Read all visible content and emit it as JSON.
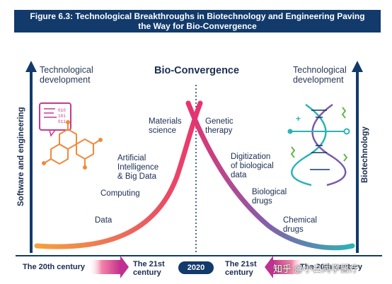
{
  "figure_title_line1": "Figure 6.3: Technological Breakthroughs in Biotechnology and Engineering Paving",
  "figure_title_line2": "the Way for Bio-Convergence",
  "center_title": "Bio-Convergence",
  "left_header": [
    "Technological",
    "development"
  ],
  "right_header": [
    "Technological",
    "development"
  ],
  "left_axis_label": "Software and engineering",
  "right_axis_label": "Biotechnology",
  "left_labels": {
    "data": "Data",
    "computing": "Computing",
    "ai": [
      "Artificial",
      "Intelligence",
      "& Big Data"
    ],
    "materials": [
      "Materials",
      "science"
    ]
  },
  "right_labels": {
    "genetic": [
      "Genetic",
      "therapy"
    ],
    "digitization": [
      "Digitization",
      "of biological",
      "data"
    ],
    "bio_drugs": [
      "Biological",
      "drugs"
    ],
    "chem_drugs": [
      "Chemical",
      "drugs"
    ]
  },
  "timeline": {
    "left_start": "The 20th century",
    "left_end": [
      "The 21st",
      "century"
    ],
    "center": "2020",
    "right_start": [
      "The 21st",
      "century"
    ],
    "right_end": "The 20th century"
  },
  "watermark": "知乎 @小白同学醫疗",
  "colors": {
    "navy": "#123a6b",
    "left_curve_start": "#f4a23c",
    "left_curve_end": "#e8336e",
    "right_curve_start": "#e8336e",
    "right_curve_end": "#2bb3b5"
  }
}
